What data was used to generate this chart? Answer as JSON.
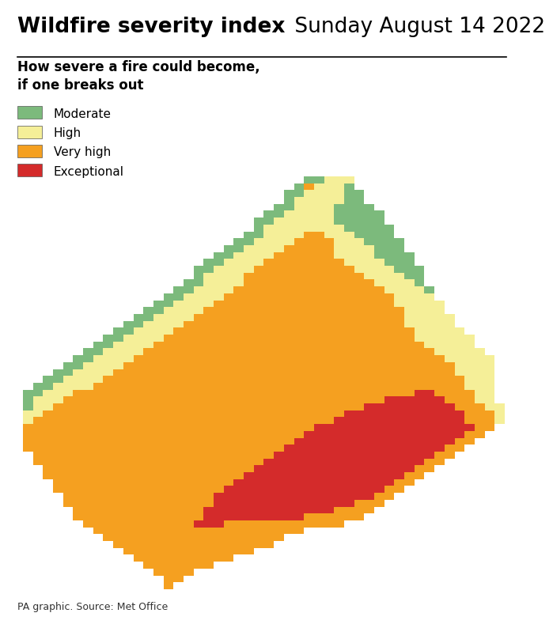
{
  "title_bold": "Wildfire severity index",
  "title_regular": " Sunday August 14 2022",
  "subtitle": "How severe a fire could become,\nif one breaks out",
  "source": "PA graphic. Source: Met Office",
  "legend_items": [
    {
      "label": "Moderate",
      "color": "#7cba7c"
    },
    {
      "label": "High",
      "color": "#f5ef98"
    },
    {
      "label": "Very high",
      "color": "#f5a020"
    },
    {
      "label": "Exceptional",
      "color": "#d42b2b"
    }
  ],
  "colors": {
    "moderate": "#7cba7c",
    "high": "#f5ef98",
    "very_high": "#f5a020",
    "exceptional": "#d42b2b",
    "background": "#ffffff"
  },
  "title_fontsize": 19,
  "subtitle_fontsize": 12,
  "legend_fontsize": 11,
  "source_fontsize": 9,
  "map_aspect": "equal"
}
